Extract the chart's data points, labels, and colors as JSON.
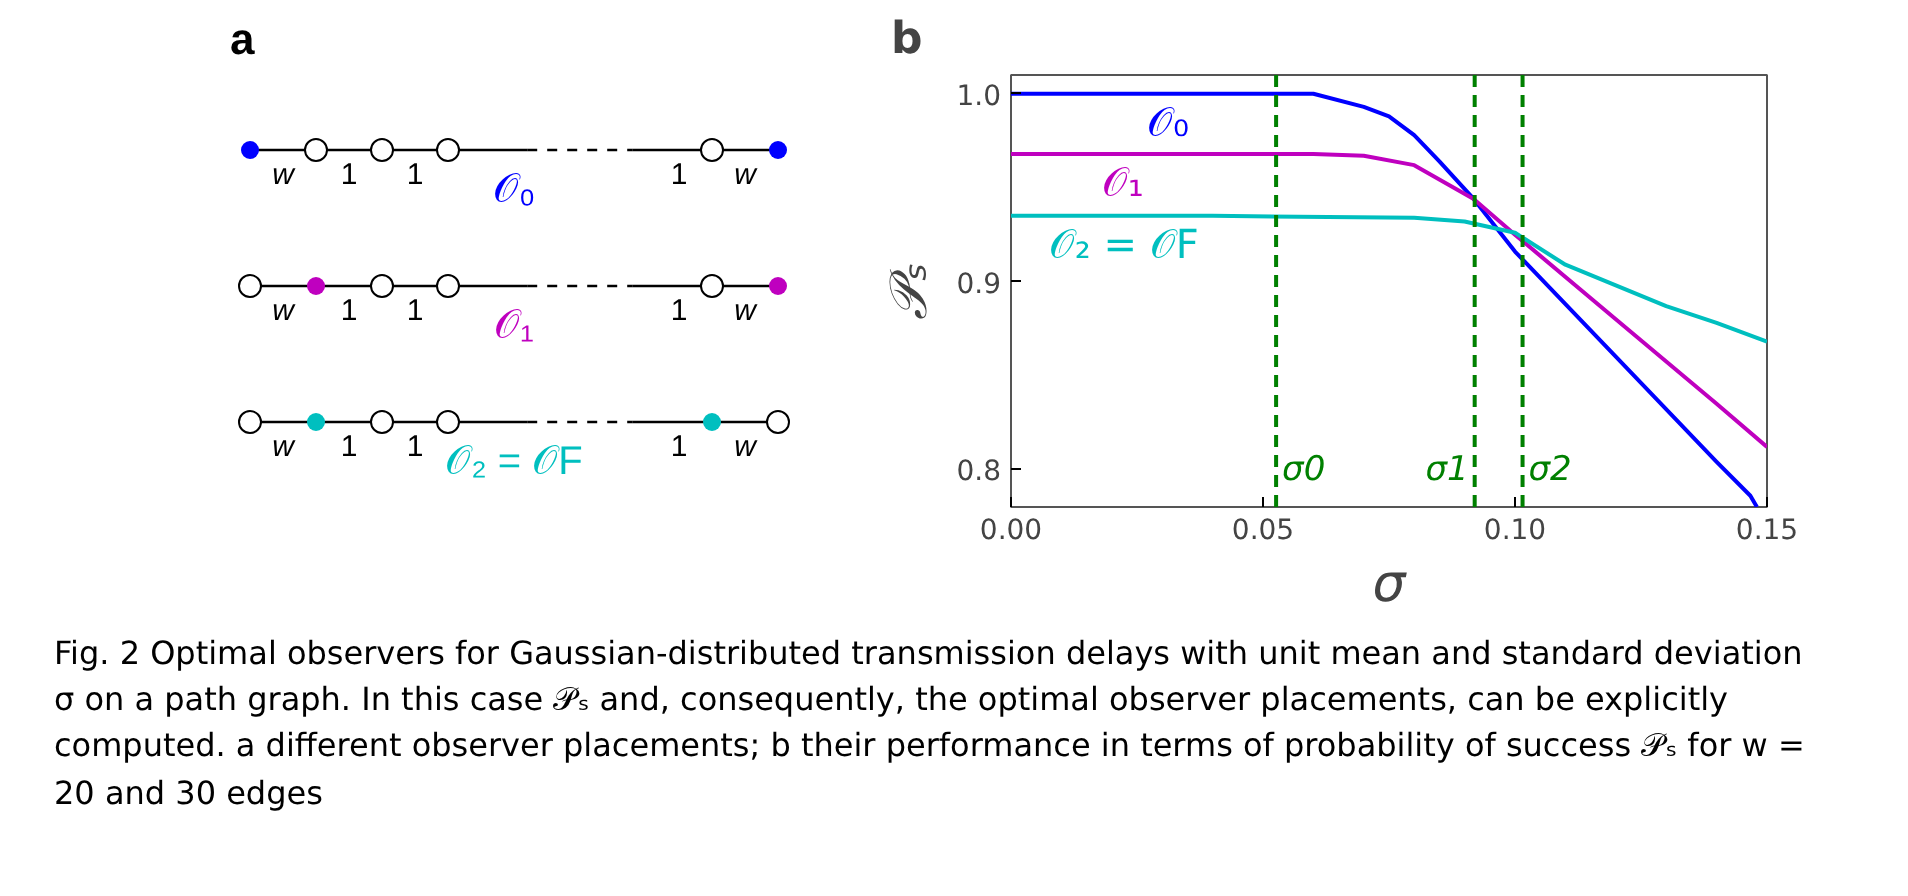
{
  "chart_data": [
    {
      "type": "other",
      "title": "a",
      "annotations": [
        "w",
        "1",
        "1",
        "1",
        "w",
        "𝒪₀",
        "w",
        "1",
        "1",
        "1",
        "w",
        "𝒪₁",
        "w",
        "1",
        "1",
        "1",
        "w",
        "𝒪₂ = 𝒪F"
      ],
      "colors": [
        "#0000ff",
        "#bf00bf",
        "#00bfbf"
      ]
    },
    {
      "type": "line",
      "title": "b",
      "xlabel": "σ",
      "ylabel": "𝒫ₛ",
      "xlim": [
        0,
        0.15
      ],
      "ylim": [
        0.78,
        1.01
      ],
      "xticks": [
        {
          "value": 0,
          "label": "0.00"
        },
        0.05,
        {
          "value": 0.1,
          "label": "0.10"
        },
        0.15
      ],
      "yticks": [
        0.8,
        0.9,
        {
          "value": 1.0,
          "label": "1.0"
        }
      ],
      "series": [
        {
          "name": "𝒪₀",
          "color": "#0000ff",
          "x": [
            0,
            0.03,
            0.06,
            0.07,
            0.075,
            0.08,
            0.085,
            0.0918,
            0.1,
            0.12,
            0.14,
            0.1467,
            0.148
          ],
          "values": [
            1.0,
            1.0,
            1.0,
            0.993,
            0.988,
            0.978,
            0.964,
            0.944,
            0.916,
            0.86,
            0.804,
            0.786,
            0.78
          ]
        },
        {
          "name": "𝒪₁",
          "color": "#bf00bf",
          "x": [
            0,
            0.03,
            0.06,
            0.07,
            0.08,
            0.0918,
            0.1,
            0.12,
            0.14,
            0.15
          ],
          "values": [
            0.968,
            0.968,
            0.968,
            0.967,
            0.962,
            0.944,
            0.925,
            0.88,
            0.835,
            0.812
          ]
        },
        {
          "name": "𝒪₂ = 𝒪F",
          "color": "#00bfbf",
          "x": [
            0,
            0.04,
            0.08,
            0.09,
            0.1,
            0.11,
            0.12,
            0.13,
            0.14,
            0.15
          ],
          "values": [
            0.935,
            0.935,
            0.934,
            0.932,
            0.926,
            0.909,
            0.898,
            0.887,
            0.878,
            0.868
          ]
        }
      ],
      "ref_lines": [
        {
          "axis": "x",
          "value": 0.0526,
          "label": "σ0",
          "color": "#008000",
          "line_style": "dashed"
        },
        {
          "axis": "x",
          "value": 0.092,
          "label": "σ1",
          "color": "#008000",
          "line_style": "dashed"
        },
        {
          "axis": "x",
          "value": 0.1015,
          "label": "σ2",
          "color": "#008000",
          "line_style": "dashed"
        }
      ],
      "annotations": [
        "Fig. 2 Optimal observers for Gaussian-distributed transmission delays with unit mean and standard deviation σ on a path graph. In this case 𝒫ₛ and, consequently, the optimal observer placements, can be explicitly computed. a different observer placements; b their performance in terms of probability of success 𝒫ₛ for w = 20 and 30 edges"
      ]
    }
  ]
}
